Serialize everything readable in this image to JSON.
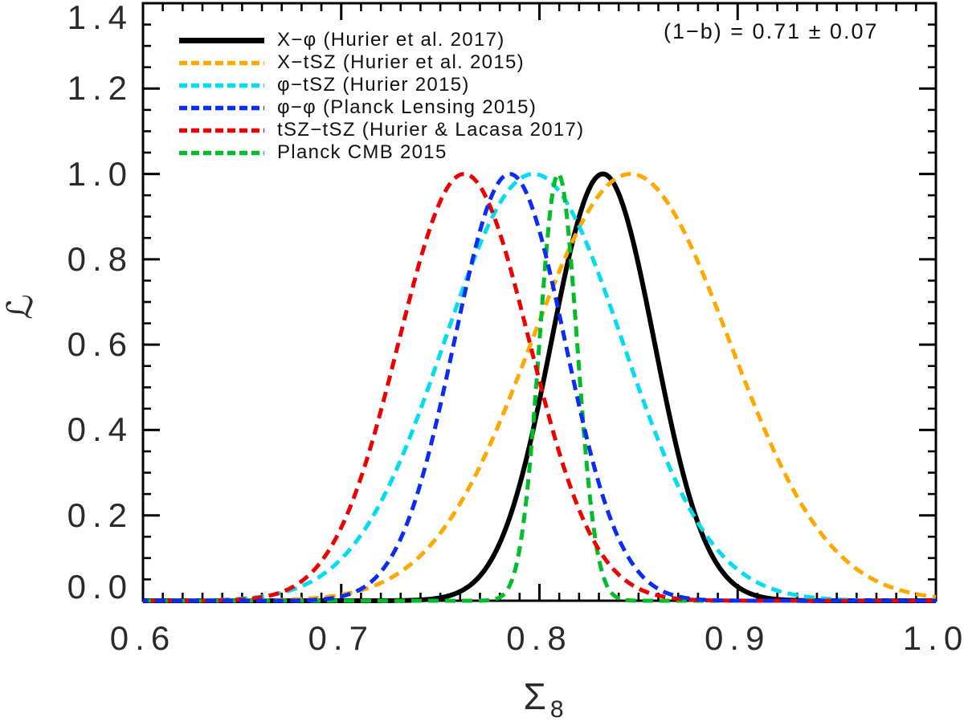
{
  "chart_data": {
    "type": "line",
    "title": "",
    "annotation": "(1−b) = 0.71 ± 0.07",
    "xlabel_main": "Σ",
    "xlabel_sub": "8",
    "ylabel": "ℒ",
    "xlim": [
      0.6,
      1.0
    ],
    "ylim": [
      0.0,
      1.4
    ],
    "x_tick_values": [
      0.6,
      0.7,
      0.8,
      0.9,
      1.0
    ],
    "x_tick_labels": [
      "0.6",
      "0.7",
      "0.8",
      "0.9",
      "1.0"
    ],
    "x_minor_step": 0.01,
    "y_tick_values": [
      0.0,
      0.2,
      0.4,
      0.6,
      0.8,
      1.0,
      1.2,
      1.4
    ],
    "y_tick_labels": [
      "0.0",
      "0.2",
      "0.4",
      "0.6",
      "0.8",
      "1.0",
      "1.2",
      "1.4"
    ],
    "y_minor_step": 0.05,
    "grid": false,
    "legend_position": "top-left",
    "curve_model": "gaussian",
    "series": [
      {
        "name": "X−φ (Hurier et al. 2017)",
        "color": "#000000",
        "line_style": "solid",
        "center": 0.832,
        "sigma": 0.026,
        "peak": 1.0
      },
      {
        "name": "X−tSZ (Hurier et al. 2015)",
        "color": "#FFA900",
        "line_style": "dashed",
        "center": 0.846,
        "sigma": 0.05,
        "peak": 1.0
      },
      {
        "name": "φ−tSZ (Hurier 2015)",
        "color": "#00DCF0",
        "line_style": "dashed",
        "center": 0.797,
        "sigma": 0.045,
        "peak": 1.0
      },
      {
        "name": "φ−φ (Planck Lensing 2015)",
        "color": "#0A2CF5",
        "line_style": "dashed",
        "center": 0.785,
        "sigma": 0.028,
        "peak": 1.0
      },
      {
        "name": "tSZ−tSZ (Hurier & Lacasa 2017)",
        "color": "#EF0000",
        "line_style": "dashed",
        "center": 0.762,
        "sigma": 0.033,
        "peak": 1.0
      },
      {
        "name": "Planck CMB 2015",
        "color": "#00BE28",
        "line_style": "dashed",
        "center": 0.8095,
        "sigma": 0.0095,
        "peak": 1.0
      }
    ],
    "draw_order": [
      0,
      1,
      2,
      5,
      4,
      3
    ]
  }
}
